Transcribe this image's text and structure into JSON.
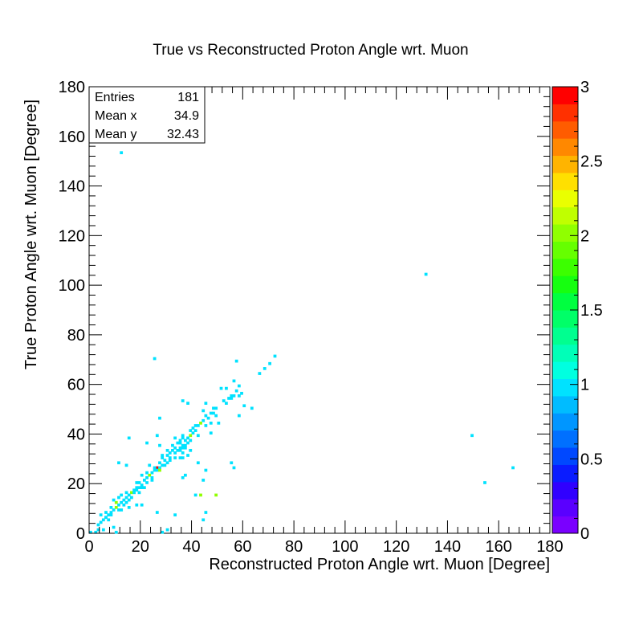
{
  "chart_data": {
    "type": "heatmap",
    "title": "True vs Reconstructed Proton Angle wrt. Muon",
    "xlabel": "Reconstructed Proton Angle wrt. Muon [Degree]",
    "ylabel": "True Proton Angle wrt. Muon [Degree]",
    "xlim": [
      0,
      180
    ],
    "ylim": [
      0,
      180
    ],
    "xticks": [
      "0",
      "20",
      "40",
      "60",
      "80",
      "100",
      "120",
      "140",
      "160",
      "180"
    ],
    "yticks": [
      "0",
      "20",
      "40",
      "60",
      "80",
      "100",
      "120",
      "140",
      "160",
      "180"
    ],
    "bins": {
      "nx": 180,
      "ny": 180
    },
    "colorbar": {
      "range": [
        0,
        3
      ],
      "ticks": [
        "0",
        "0.5",
        "1",
        "1.5",
        "2",
        "2.5",
        "3"
      ],
      "colors": [
        "#7a00ff",
        "#5a00ff",
        "#3000ff",
        "#0a1cff",
        "#0048ff",
        "#0070ff",
        "#0096ff",
        "#00bcff",
        "#00e2ff",
        "#00ffe0",
        "#00ffb8",
        "#00ff90",
        "#00ff68",
        "#00ff40",
        "#16ff10",
        "#3cff00",
        "#66ff00",
        "#90ff00",
        "#c0ff00",
        "#eaff00",
        "#ffe000",
        "#ffb400",
        "#ff8800",
        "#ff5c00",
        "#ff3000",
        "#ff0000"
      ]
    },
    "stats": {
      "entries_label": "Entries",
      "entries_value": "181",
      "meanx_label": "Mean x",
      "meanx_value": "34.9",
      "meany_label": "Mean y",
      "meany_value": "32.43"
    },
    "points": [
      [
        12,
        153,
        1
      ],
      [
        131,
        104,
        1
      ],
      [
        25,
        70,
        1
      ],
      [
        57,
        69,
        1
      ],
      [
        72,
        71,
        1
      ],
      [
        70,
        68,
        1
      ],
      [
        68,
        66,
        1
      ],
      [
        66,
        64,
        1
      ],
      [
        56,
        61,
        1
      ],
      [
        51,
        58,
        1
      ],
      [
        53,
        58,
        1
      ],
      [
        58,
        59,
        1
      ],
      [
        57,
        57,
        1
      ],
      [
        59,
        56,
        1
      ],
      [
        55,
        55,
        1
      ],
      [
        56,
        55,
        1
      ],
      [
        58,
        55,
        1
      ],
      [
        54,
        54,
        1
      ],
      [
        55,
        54,
        1
      ],
      [
        52,
        53,
        1
      ],
      [
        53,
        52,
        1
      ],
      [
        60,
        51,
        1
      ],
      [
        36,
        53,
        1
      ],
      [
        38,
        52,
        1
      ],
      [
        45,
        52,
        1
      ],
      [
        48,
        50,
        1
      ],
      [
        49,
        50,
        1
      ],
      [
        44,
        49,
        1
      ],
      [
        48,
        48,
        1
      ],
      [
        49,
        47,
        1
      ],
      [
        58,
        47,
        1
      ],
      [
        45,
        47,
        1
      ],
      [
        46,
        46,
        1
      ],
      [
        44,
        45,
        1
      ],
      [
        43,
        44,
        2
      ],
      [
        42,
        43,
        1
      ],
      [
        40,
        42,
        1
      ],
      [
        41,
        41,
        1
      ],
      [
        45,
        43,
        1
      ],
      [
        47,
        44,
        1
      ],
      [
        39,
        41,
        1
      ],
      [
        40,
        40,
        1
      ],
      [
        36,
        39,
        1
      ],
      [
        39,
        39,
        2
      ],
      [
        38,
        38,
        1
      ],
      [
        42,
        39,
        1
      ],
      [
        47,
        40,
        1
      ],
      [
        36,
        38,
        1
      ],
      [
        37,
        37,
        1
      ],
      [
        34,
        36,
        1
      ],
      [
        35,
        36,
        1
      ],
      [
        36,
        35,
        1
      ],
      [
        37,
        35,
        1
      ],
      [
        38,
        36,
        1
      ],
      [
        33,
        34,
        1
      ],
      [
        35,
        34,
        1
      ],
      [
        36,
        34,
        1
      ],
      [
        37,
        34,
        1
      ],
      [
        32,
        33,
        1
      ],
      [
        34,
        33,
        1
      ],
      [
        35,
        33,
        1
      ],
      [
        39,
        33,
        1
      ],
      [
        31,
        32,
        1
      ],
      [
        33,
        32,
        1
      ],
      [
        36,
        32,
        1
      ],
      [
        38,
        31,
        1
      ],
      [
        30,
        31,
        1
      ],
      [
        31,
        30,
        1
      ],
      [
        35,
        30,
        1
      ],
      [
        36,
        30,
        1
      ],
      [
        28,
        30,
        1
      ],
      [
        29,
        29,
        1
      ],
      [
        31,
        29,
        1
      ],
      [
        27,
        28,
        1
      ],
      [
        30,
        28,
        1
      ],
      [
        28,
        27,
        1
      ],
      [
        26,
        26,
        3
      ],
      [
        27,
        26,
        1
      ],
      [
        25,
        25,
        1
      ],
      [
        26,
        25,
        1
      ],
      [
        27,
        25,
        2
      ],
      [
        24,
        24,
        1
      ],
      [
        23,
        23,
        2
      ],
      [
        22,
        22,
        1
      ],
      [
        21,
        21,
        1
      ],
      [
        22,
        20,
        1
      ],
      [
        19,
        20,
        1
      ],
      [
        20,
        19,
        1
      ],
      [
        18,
        18,
        1
      ],
      [
        19,
        18,
        1
      ],
      [
        17,
        17,
        1
      ],
      [
        16,
        16,
        2
      ],
      [
        17,
        16,
        1
      ],
      [
        15,
        15,
        1
      ],
      [
        14,
        14,
        1
      ],
      [
        13,
        13,
        1
      ],
      [
        15,
        13,
        1
      ],
      [
        16,
        14,
        1
      ],
      [
        12,
        12,
        1
      ],
      [
        11,
        11,
        1
      ],
      [
        10,
        10,
        2
      ],
      [
        9,
        9,
        1
      ],
      [
        8,
        8,
        1
      ],
      [
        7,
        7,
        1
      ],
      [
        6,
        6,
        1
      ],
      [
        5,
        5,
        1
      ],
      [
        10,
        12,
        2
      ],
      [
        11,
        14,
        1
      ],
      [
        9,
        13,
        1
      ],
      [
        12,
        15,
        1
      ],
      [
        14,
        16,
        1
      ],
      [
        18,
        17,
        1
      ],
      [
        20,
        18,
        1
      ],
      [
        21,
        18,
        1
      ],
      [
        20,
        23,
        1
      ],
      [
        24,
        21,
        1
      ],
      [
        25,
        26,
        1
      ],
      [
        23,
        27,
        1
      ],
      [
        28,
        31,
        1
      ],
      [
        30,
        33,
        1
      ],
      [
        27,
        35,
        1
      ],
      [
        32,
        35,
        1
      ],
      [
        35,
        37,
        1
      ],
      [
        33,
        38,
        1
      ],
      [
        26,
        39,
        1
      ],
      [
        27,
        46,
        1
      ],
      [
        15,
        38,
        1
      ],
      [
        11,
        28,
        1
      ],
      [
        14,
        27,
        1
      ],
      [
        22,
        36,
        1
      ],
      [
        42,
        28,
        1
      ],
      [
        36,
        22,
        1
      ],
      [
        37,
        23,
        1
      ],
      [
        44,
        21,
        1
      ],
      [
        49,
        15,
        2
      ],
      [
        41,
        15,
        1
      ],
      [
        43,
        15,
        2
      ],
      [
        45,
        8,
        1
      ],
      [
        44,
        5,
        1
      ],
      [
        26,
        8,
        1
      ],
      [
        33,
        7,
        1
      ],
      [
        30,
        1,
        1
      ],
      [
        28,
        0,
        1
      ],
      [
        20,
        11,
        1
      ],
      [
        18,
        11,
        1
      ],
      [
        15,
        10,
        1
      ],
      [
        12,
        9,
        1
      ],
      [
        8,
        7,
        1
      ],
      [
        6,
        6,
        1
      ],
      [
        4,
        7,
        1
      ],
      [
        7,
        5,
        1
      ],
      [
        9,
        2,
        1
      ],
      [
        3,
        3,
        1
      ],
      [
        5,
        1,
        1
      ],
      [
        2,
        0,
        1
      ],
      [
        0,
        0,
        1
      ],
      [
        10,
        0,
        1
      ],
      [
        3,
        1,
        1
      ],
      [
        55,
        28,
        1
      ],
      [
        56,
        26,
        1
      ],
      [
        45,
        25,
        1
      ],
      [
        149,
        39,
        1
      ],
      [
        165,
        26,
        1
      ],
      [
        154,
        20,
        1
      ],
      [
        63,
        50,
        1
      ],
      [
        50,
        44,
        1
      ],
      [
        47,
        48,
        1
      ],
      [
        41,
        43,
        1
      ],
      [
        39,
        37,
        1
      ],
      [
        33,
        30,
        1
      ],
      [
        29,
        27,
        1
      ],
      [
        24,
        22,
        1
      ],
      [
        22,
        24,
        1
      ],
      [
        18,
        20,
        1
      ],
      [
        19,
        16,
        1
      ],
      [
        14,
        12,
        1
      ],
      [
        13,
        11,
        1
      ],
      [
        11,
        9,
        1
      ],
      [
        8,
        10,
        1
      ],
      [
        6,
        8,
        1
      ],
      [
        4,
        4,
        1
      ]
    ]
  }
}
